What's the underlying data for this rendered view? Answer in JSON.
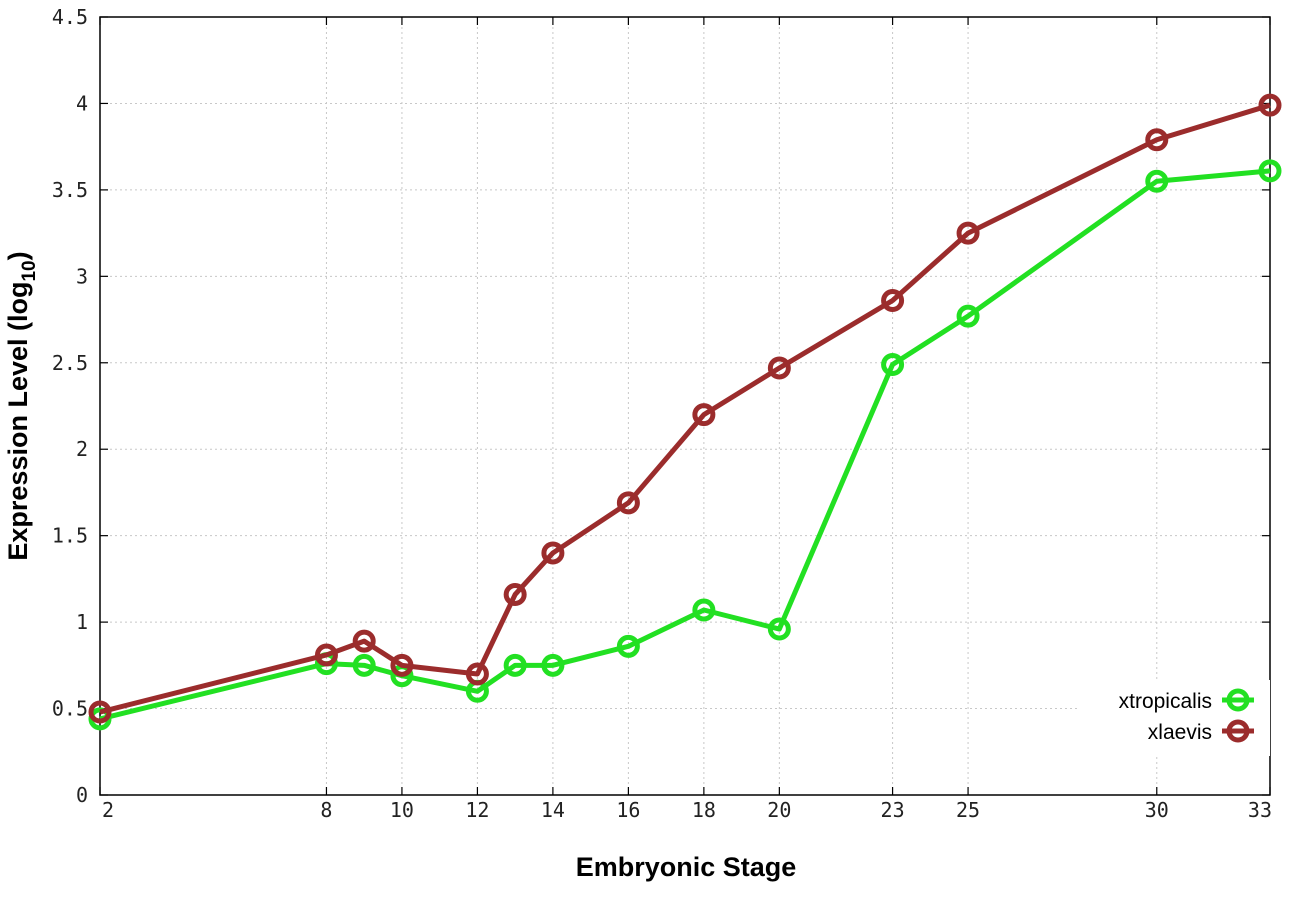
{
  "chart_data": {
    "type": "line",
    "title": "",
    "xlabel": "Embryonic Stage",
    "ylabel_main": "Expression Level (log",
    "ylabel_sub": "10",
    "ylabel_close": ")",
    "xlim": [
      2,
      33
    ],
    "ylim": [
      0,
      4.5
    ],
    "x_ticks": [
      2,
      8,
      10,
      12,
      14,
      16,
      18,
      20,
      23,
      25,
      30,
      33
    ],
    "y_ticks": [
      0,
      0.5,
      1,
      1.5,
      2,
      2.5,
      3,
      3.5,
      4,
      4.5
    ],
    "y_tick_labels": [
      "0",
      "0.5",
      "1",
      "1.5",
      "2",
      "2.5",
      "3",
      "3.5",
      "4",
      "4.5"
    ],
    "grid": true,
    "legend_position": "bottom-right",
    "x": [
      2,
      8,
      9,
      10,
      12,
      13,
      14,
      16,
      18,
      20,
      23,
      25,
      30,
      33
    ],
    "series": [
      {
        "name": "xtropicalis",
        "color": "#22e022",
        "values": [
          0.44,
          0.76,
          0.75,
          0.69,
          0.6,
          0.75,
          0.75,
          0.86,
          1.07,
          0.96,
          2.49,
          2.77,
          3.55,
          3.61
        ]
      },
      {
        "name": "xlaevis",
        "color": "#9b2c2c",
        "values": [
          0.48,
          0.81,
          0.89,
          0.75,
          0.7,
          1.16,
          1.4,
          1.69,
          2.2,
          2.47,
          2.86,
          3.25,
          3.79,
          3.99
        ]
      }
    ]
  }
}
